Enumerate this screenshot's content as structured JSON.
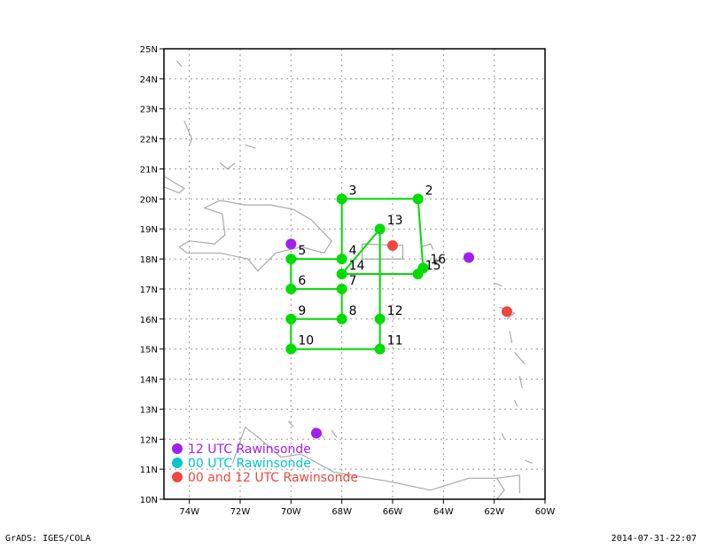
{
  "map": {
    "lon_min": -75,
    "lon_max": -60,
    "lat_min": 10,
    "lat_max": 25,
    "x_ticks": [
      "74W",
      "72W",
      "70W",
      "68W",
      "66W",
      "64W",
      "62W",
      "60W"
    ],
    "y_ticks": [
      "10N",
      "11N",
      "12N",
      "13N",
      "14N",
      "15N",
      "16N",
      "17N",
      "18N",
      "19N",
      "20N",
      "21N",
      "22N",
      "23N",
      "24N",
      "25N"
    ]
  },
  "waypoints": [
    {
      "label": "2",
      "lon": -65.0,
      "lat": 20.0
    },
    {
      "label": "3",
      "lon": -68.0,
      "lat": 20.0
    },
    {
      "label": "4",
      "lon": -68.0,
      "lat": 18.0
    },
    {
      "label": "5",
      "lon": -70.0,
      "lat": 18.0
    },
    {
      "label": "6",
      "lon": -70.0,
      "lat": 17.0
    },
    {
      "label": "7",
      "lon": -68.0,
      "lat": 17.0
    },
    {
      "label": "8",
      "lon": -68.0,
      "lat": 16.0
    },
    {
      "label": "9",
      "lon": -70.0,
      "lat": 16.0
    },
    {
      "label": "10",
      "lon": -70.0,
      "lat": 15.0
    },
    {
      "label": "11",
      "lon": -66.5,
      "lat": 15.0
    },
    {
      "label": "12",
      "lon": -66.5,
      "lat": 16.0
    },
    {
      "label": "13",
      "lon": -66.5,
      "lat": 19.0
    },
    {
      "label": "14",
      "lon": -68.0,
      "lat": 17.5
    },
    {
      "label": "15",
      "lon": -65.0,
      "lat": 17.5
    },
    {
      "label": "16",
      "lon": -64.8,
      "lat": 17.7
    }
  ],
  "track_order": [
    "3",
    "2",
    "16",
    "15",
    "14",
    "13",
    "12",
    "11",
    "10",
    "9",
    "8",
    "7",
    "6",
    "5",
    "4",
    "3"
  ],
  "rawinsondes": [
    {
      "type": "12",
      "lon": -70.0,
      "lat": 18.5
    },
    {
      "type": "12",
      "lon": -69.0,
      "lat": 12.2
    },
    {
      "type": "12",
      "lon": -63.0,
      "lat": 18.05
    },
    {
      "type": "both",
      "lon": -66.0,
      "lat": 18.45
    },
    {
      "type": "both",
      "lon": -61.5,
      "lat": 16.25
    }
  ],
  "legend": [
    {
      "label": "12 UTC Rawinsonde",
      "color": "#a020f0"
    },
    {
      "label": "00 UTC Rawinsonde",
      "color": "#00c8c8"
    },
    {
      "label": "00 and 12 UTC Rawinsonde",
      "color": "#f0463c"
    }
  ],
  "colors": {
    "track": "#00dc00",
    "type_12": "#a020f0",
    "type_both": "#f0463c",
    "coast": "#aaaaaa",
    "grid": "#999999"
  },
  "footer": {
    "left": "GrADS: IGES/COLA",
    "right": "2014-07-31-22:07"
  }
}
